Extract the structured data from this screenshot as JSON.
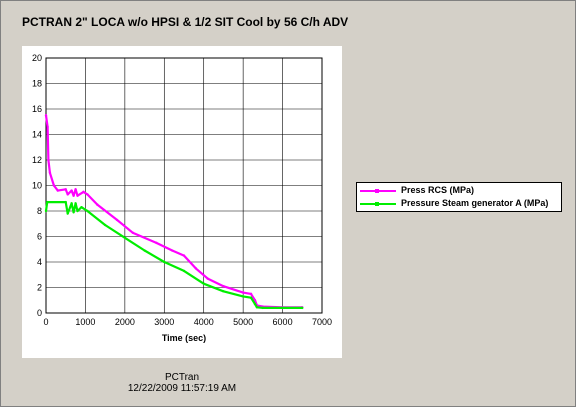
{
  "window": {
    "title": "PCTRAN 2\" LOCA w/o HPSI & 1/2 SIT Cool by 56 C/h ADV"
  },
  "footer": {
    "app_name": "PCTran",
    "timestamp": "12/22/2009 11:57:19 AM"
  },
  "chart_data": {
    "type": "line",
    "title": "PCTRAN 2\" LOCA w/o HPSI & 1/2 SIT Cool by 56 C/h ADV",
    "xlabel": "Time (sec)",
    "ylabel": "",
    "xlim": [
      0,
      7000
    ],
    "ylim": [
      0,
      20
    ],
    "x_ticks": [
      "0",
      "1000",
      "2000",
      "3000",
      "4000",
      "5000",
      "6000",
      "7000"
    ],
    "y_ticks": [
      "0",
      "2",
      "4",
      "6",
      "8",
      "10",
      "12",
      "14",
      "16",
      "18",
      "20"
    ],
    "grid": true,
    "legend_position": "right",
    "series": [
      {
        "name": "Press RCS (MPa)",
        "color": "#ff00ff",
        "points": [
          [
            0,
            15.5
          ],
          [
            40,
            14.6
          ],
          [
            60,
            12.0
          ],
          [
            100,
            11.0
          ],
          [
            200,
            10.0
          ],
          [
            300,
            9.6
          ],
          [
            500,
            9.7
          ],
          [
            550,
            9.3
          ],
          [
            650,
            9.6
          ],
          [
            700,
            9.2
          ],
          [
            750,
            9.7
          ],
          [
            800,
            9.2
          ],
          [
            950,
            9.5
          ],
          [
            1050,
            9.3
          ],
          [
            1300,
            8.5
          ],
          [
            1800,
            7.3
          ],
          [
            2200,
            6.3
          ],
          [
            2800,
            5.5
          ],
          [
            3200,
            4.9
          ],
          [
            3500,
            4.5
          ],
          [
            3800,
            3.5
          ],
          [
            4100,
            2.7
          ],
          [
            4500,
            2.1
          ],
          [
            5000,
            1.6
          ],
          [
            5200,
            1.5
          ],
          [
            5300,
            1.0
          ],
          [
            5350,
            0.6
          ],
          [
            5500,
            0.5
          ],
          [
            6000,
            0.45
          ],
          [
            6500,
            0.45
          ]
        ]
      },
      {
        "name": "Pressure Steam generator A (MPa)",
        "color": "#00ee00",
        "points": [
          [
            0,
            8.0
          ],
          [
            30,
            8.7
          ],
          [
            500,
            8.7
          ],
          [
            550,
            7.8
          ],
          [
            650,
            8.6
          ],
          [
            700,
            7.9
          ],
          [
            750,
            8.6
          ],
          [
            800,
            8.0
          ],
          [
            900,
            8.3
          ],
          [
            1050,
            8.0
          ],
          [
            1500,
            6.9
          ],
          [
            2000,
            5.9
          ],
          [
            2500,
            4.9
          ],
          [
            3000,
            4.0
          ],
          [
            3500,
            3.3
          ],
          [
            4000,
            2.3
          ],
          [
            4500,
            1.7
          ],
          [
            5000,
            1.3
          ],
          [
            5200,
            1.2
          ],
          [
            5300,
            0.7
          ],
          [
            5350,
            0.45
          ],
          [
            5500,
            0.4
          ],
          [
            6000,
            0.4
          ],
          [
            6500,
            0.4
          ]
        ]
      }
    ]
  }
}
